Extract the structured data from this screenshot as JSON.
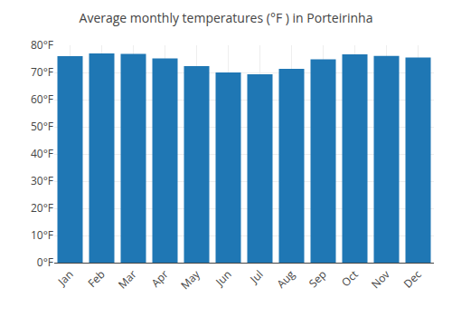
{
  "chart_data": {
    "type": "bar",
    "title": "Average monthly temperatures (°F ) in Porteirinha",
    "categories": [
      "Jan",
      "Feb",
      "Mar",
      "Apr",
      "May",
      "Jun",
      "Jul",
      "Aug",
      "Sep",
      "Oct",
      "Nov",
      "Dec"
    ],
    "values": [
      76.0,
      77.0,
      76.8,
      75.2,
      72.3,
      70.0,
      69.3,
      71.3,
      74.8,
      76.7,
      76.1,
      75.5
    ],
    "ylim": [
      0,
      80
    ],
    "yticks": [
      {
        "value": 0,
        "label": "0°F"
      },
      {
        "value": 10,
        "label": "10°F"
      },
      {
        "value": 20,
        "label": "20°F"
      },
      {
        "value": 30,
        "label": "30°F"
      },
      {
        "value": 40,
        "label": "40°F"
      },
      {
        "value": 50,
        "label": "50°F"
      },
      {
        "value": 60,
        "label": "60°F"
      },
      {
        "value": 70,
        "label": "70°F"
      },
      {
        "value": 80,
        "label": "80°F"
      }
    ],
    "grid": true
  }
}
